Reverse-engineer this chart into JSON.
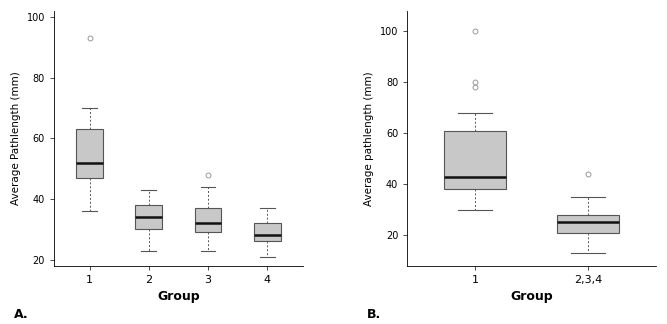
{
  "panel_A": {
    "ylabel": "Average Pathlength (mm)",
    "xlabel": "Group",
    "xtick_labels": [
      "1",
      "2",
      "3",
      "4"
    ],
    "positions": [
      1,
      2,
      3,
      4
    ],
    "boxes": [
      {
        "q1": 47,
        "median": 52,
        "q3": 63,
        "whisker_low": 36,
        "whisker_high": 70,
        "fliers": [
          93
        ]
      },
      {
        "q1": 30,
        "median": 34,
        "q3": 38,
        "whisker_low": 23,
        "whisker_high": 43,
        "fliers": []
      },
      {
        "q1": 29,
        "median": 32,
        "q3": 37,
        "whisker_low": 23,
        "whisker_high": 44,
        "fliers": [
          48
        ]
      },
      {
        "q1": 26,
        "median": 28,
        "q3": 32,
        "whisker_low": 21,
        "whisker_high": 37,
        "fliers": []
      }
    ],
    "ylim": [
      18,
      102
    ],
    "yticks": [
      20,
      40,
      60,
      80,
      100
    ],
    "label": "A."
  },
  "panel_B": {
    "ylabel": "Average pathlength (mm)",
    "xlabel": "Group",
    "xtick_labels": [
      "1",
      "2,3,4"
    ],
    "positions": [
      1,
      2
    ],
    "boxes": [
      {
        "q1": 38,
        "median": 43,
        "q3": 61,
        "whisker_low": 30,
        "whisker_high": 68,
        "fliers": [
          78,
          80,
          100
        ]
      },
      {
        "q1": 21,
        "median": 25,
        "q3": 28,
        "whisker_low": 13,
        "whisker_high": 35,
        "fliers": [
          44
        ]
      }
    ],
    "ylim": [
      8,
      108
    ],
    "yticks": [
      20,
      40,
      60,
      80,
      100
    ],
    "label": "B."
  },
  "box_facecolor": "#c8c8c8",
  "box_edgecolor": "#555555",
  "median_color": "#111111",
  "whisker_color": "#555555",
  "flier_color": "#999999",
  "background_color": "#ffffff",
  "panel_bg": "#ffffff"
}
